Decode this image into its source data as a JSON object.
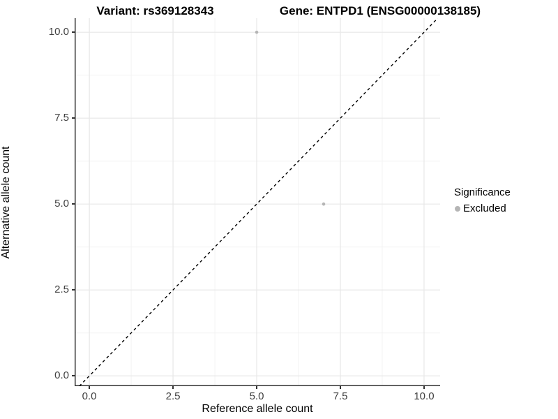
{
  "figure": {
    "title_left": "Variant: rs369128343",
    "title_right": "Gene: ENTPD1 (ENSG00000138185)"
  },
  "chart_data": {
    "type": "scatter",
    "title": "Variant: rs369128343   Gene: ENTPD1 (ENSG00000138185)",
    "xlabel": "Reference allele count",
    "ylabel": "Alternative allele count",
    "xlim": [
      -0.44,
      10.48
    ],
    "ylim": [
      -0.3,
      10.41
    ],
    "x_ticks": {
      "values": [
        0,
        2.5,
        5,
        7.5,
        10
      ],
      "labels": [
        "0.0",
        "2.5",
        "5.0",
        "7.5",
        "10.0"
      ]
    },
    "y_ticks": {
      "values": [
        0,
        2.5,
        5,
        7.5,
        10
      ],
      "labels": [
        "0.0",
        "2.5",
        "5.0",
        "7.5",
        "10.0"
      ]
    },
    "grid": "major+minor",
    "reference_line": {
      "type": "abline",
      "slope": 1,
      "intercept": 0,
      "style": "dashed",
      "color": "#000000"
    },
    "series": [
      {
        "name": "Excluded",
        "color": "#b5b5b5",
        "points": [
          {
            "x": 5,
            "y": 10
          },
          {
            "x": 7,
            "y": 5
          }
        ]
      }
    ],
    "legend": {
      "title": "Significance",
      "position": "right",
      "items": [
        {
          "label": "Excluded",
          "color": "#b5b5b5"
        }
      ]
    },
    "colors": {
      "grid_major": "#e7e7e7",
      "grid_minor": "#f3f3f3",
      "axis_line": "#333333",
      "tick_text": "#404040",
      "point": "#b5b5b5"
    }
  }
}
